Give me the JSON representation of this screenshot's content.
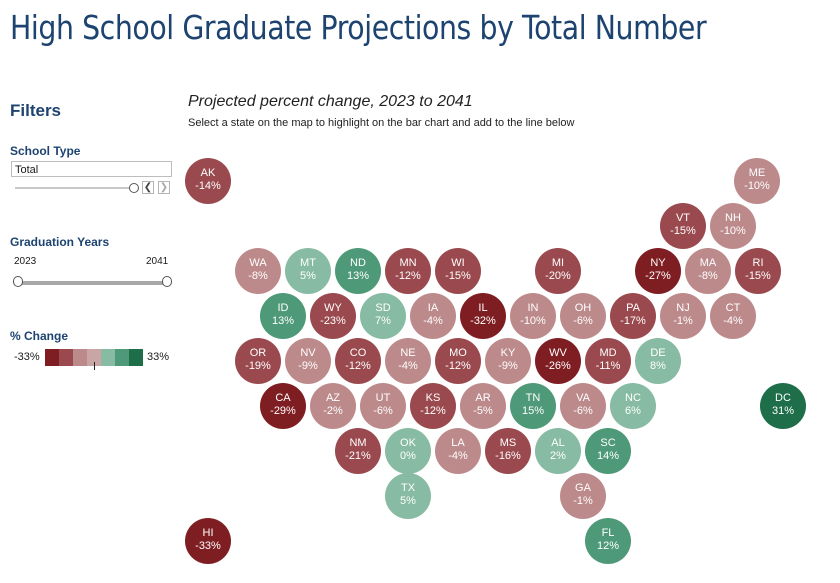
{
  "header": {
    "title": "High School Graduate Projections by Total Number"
  },
  "filters": {
    "heading": "Filters",
    "school_type": {
      "label": "School Type",
      "value": "Total"
    },
    "graduation_years": {
      "label": "Graduation Years",
      "start": "2023",
      "end": "2041"
    },
    "pct_change": {
      "label": "% Change",
      "min": "-33%",
      "max": "33%"
    }
  },
  "main": {
    "subtitle": "Projected percent change, 2023 to 2041",
    "instruction": "Select a state on the map to highlight on the bar chart and add to the line below"
  },
  "colors": {
    "dark_red": "#7f1e22",
    "red": "#9a4a4e",
    "light_red": "#bd8a8c",
    "light_green": "#88bba3",
    "green": "#4e9a78",
    "dark_green": "#1e6e4a"
  },
  "chart_data": {
    "type": "tile-map",
    "title": "Projected percent change, 2023 to 2041",
    "color_range": [
      -33,
      33
    ],
    "states": [
      {
        "abbr": "AK",
        "value": -14,
        "label": "-14%"
      },
      {
        "abbr": "ME",
        "value": -10,
        "label": "-10%"
      },
      {
        "abbr": "VT",
        "value": -15,
        "label": "-15%"
      },
      {
        "abbr": "NH",
        "value": -10,
        "label": "-10%"
      },
      {
        "abbr": "WA",
        "value": -8,
        "label": "-8%"
      },
      {
        "abbr": "MT",
        "value": 5,
        "label": "5%"
      },
      {
        "abbr": "ND",
        "value": 13,
        "label": "13%"
      },
      {
        "abbr": "MN",
        "value": -12,
        "label": "-12%"
      },
      {
        "abbr": "WI",
        "value": -15,
        "label": "-15%"
      },
      {
        "abbr": "MI",
        "value": -20,
        "label": "-20%"
      },
      {
        "abbr": "NY",
        "value": -27,
        "label": "-27%"
      },
      {
        "abbr": "MA",
        "value": -8,
        "label": "-8%"
      },
      {
        "abbr": "RI",
        "value": -15,
        "label": "-15%"
      },
      {
        "abbr": "ID",
        "value": 13,
        "label": "13%"
      },
      {
        "abbr": "WY",
        "value": -23,
        "label": "-23%"
      },
      {
        "abbr": "SD",
        "value": 7,
        "label": "7%"
      },
      {
        "abbr": "IA",
        "value": -4,
        "label": "-4%"
      },
      {
        "abbr": "IL",
        "value": -32,
        "label": "-32%"
      },
      {
        "abbr": "IN",
        "value": -10,
        "label": "-10%"
      },
      {
        "abbr": "OH",
        "value": -6,
        "label": "-6%"
      },
      {
        "abbr": "PA",
        "value": -17,
        "label": "-17%"
      },
      {
        "abbr": "NJ",
        "value": -1,
        "label": "-1%"
      },
      {
        "abbr": "CT",
        "value": -4,
        "label": "-4%"
      },
      {
        "abbr": "OR",
        "value": -19,
        "label": "-19%"
      },
      {
        "abbr": "NV",
        "value": -9,
        "label": "-9%"
      },
      {
        "abbr": "CO",
        "value": -12,
        "label": "-12%"
      },
      {
        "abbr": "NE",
        "value": -4,
        "label": "-4%"
      },
      {
        "abbr": "MO",
        "value": -12,
        "label": "-12%"
      },
      {
        "abbr": "KY",
        "value": -9,
        "label": "-9%"
      },
      {
        "abbr": "WV",
        "value": -26,
        "label": "-26%"
      },
      {
        "abbr": "MD",
        "value": -11,
        "label": "-11%"
      },
      {
        "abbr": "DE",
        "value": 8,
        "label": "8%"
      },
      {
        "abbr": "CA",
        "value": -29,
        "label": "-29%"
      },
      {
        "abbr": "AZ",
        "value": -2,
        "label": "-2%"
      },
      {
        "abbr": "UT",
        "value": -6,
        "label": "-6%"
      },
      {
        "abbr": "KS",
        "value": -12,
        "label": "-12%"
      },
      {
        "abbr": "AR",
        "value": -5,
        "label": "-5%"
      },
      {
        "abbr": "TN",
        "value": 15,
        "label": "15%"
      },
      {
        "abbr": "VA",
        "value": -6,
        "label": "-6%"
      },
      {
        "abbr": "NC",
        "value": 6,
        "label": "6%"
      },
      {
        "abbr": "DC",
        "value": 31,
        "label": "31%"
      },
      {
        "abbr": "NM",
        "value": -21,
        "label": "-21%"
      },
      {
        "abbr": "OK",
        "value": 0,
        "label": "0%"
      },
      {
        "abbr": "LA",
        "value": -4,
        "label": "-4%"
      },
      {
        "abbr": "MS",
        "value": -16,
        "label": "-16%"
      },
      {
        "abbr": "AL",
        "value": 2,
        "label": "2%"
      },
      {
        "abbr": "SC",
        "value": 14,
        "label": "14%"
      },
      {
        "abbr": "TX",
        "value": 5,
        "label": "5%"
      },
      {
        "abbr": "GA",
        "value": -1,
        "label": "-1%"
      },
      {
        "abbr": "HI",
        "value": -33,
        "label": "-33%"
      },
      {
        "abbr": "FL",
        "value": 12,
        "label": "12%"
      }
    ]
  }
}
